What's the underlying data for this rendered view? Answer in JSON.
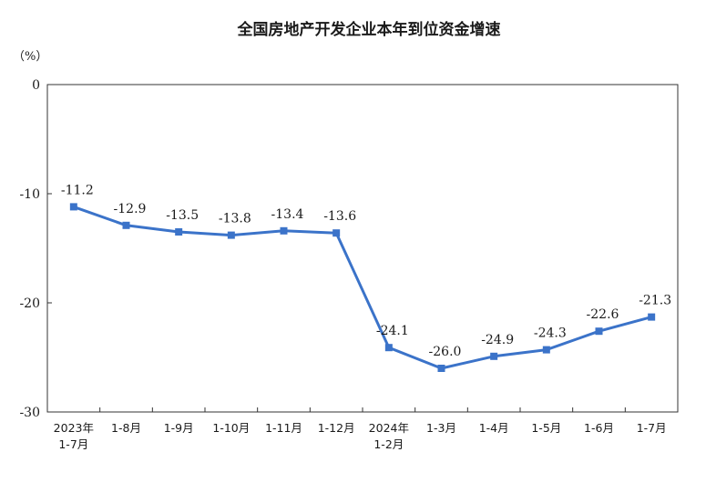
{
  "chart_data": {
    "type": "line",
    "title": "全国房地产开发企业本年到位资金增速",
    "unit_label": "（%）",
    "categories": [
      [
        "2023年",
        "1-7月"
      ],
      [
        "1-8月"
      ],
      [
        "1-9月"
      ],
      [
        "1-10月"
      ],
      [
        "1-11月"
      ],
      [
        "1-12月"
      ],
      [
        "2024年",
        "1-2月"
      ],
      [
        "1-3月"
      ],
      [
        "1-4月"
      ],
      [
        "1-5月"
      ],
      [
        "1-6月"
      ],
      [
        "1-7月"
      ]
    ],
    "series": [
      {
        "values": [
          -11.2,
          -12.9,
          -13.5,
          -13.8,
          -13.4,
          -13.6,
          -24.1,
          -26.0,
          -24.9,
          -24.3,
          -22.6,
          -21.3
        ],
        "labels": [
          "-11.2",
          "-12.9",
          "-13.5",
          "-13.8",
          "-13.4",
          "-13.6",
          "-24.1",
          "-26.0",
          "-24.9",
          "-24.3",
          "-22.6",
          "-21.3"
        ],
        "color": "#3b73c9"
      }
    ],
    "yticks": [
      0,
      -10,
      -20,
      -30
    ],
    "ylim": [
      -30,
      0
    ],
    "grid": false,
    "legend": "none"
  }
}
